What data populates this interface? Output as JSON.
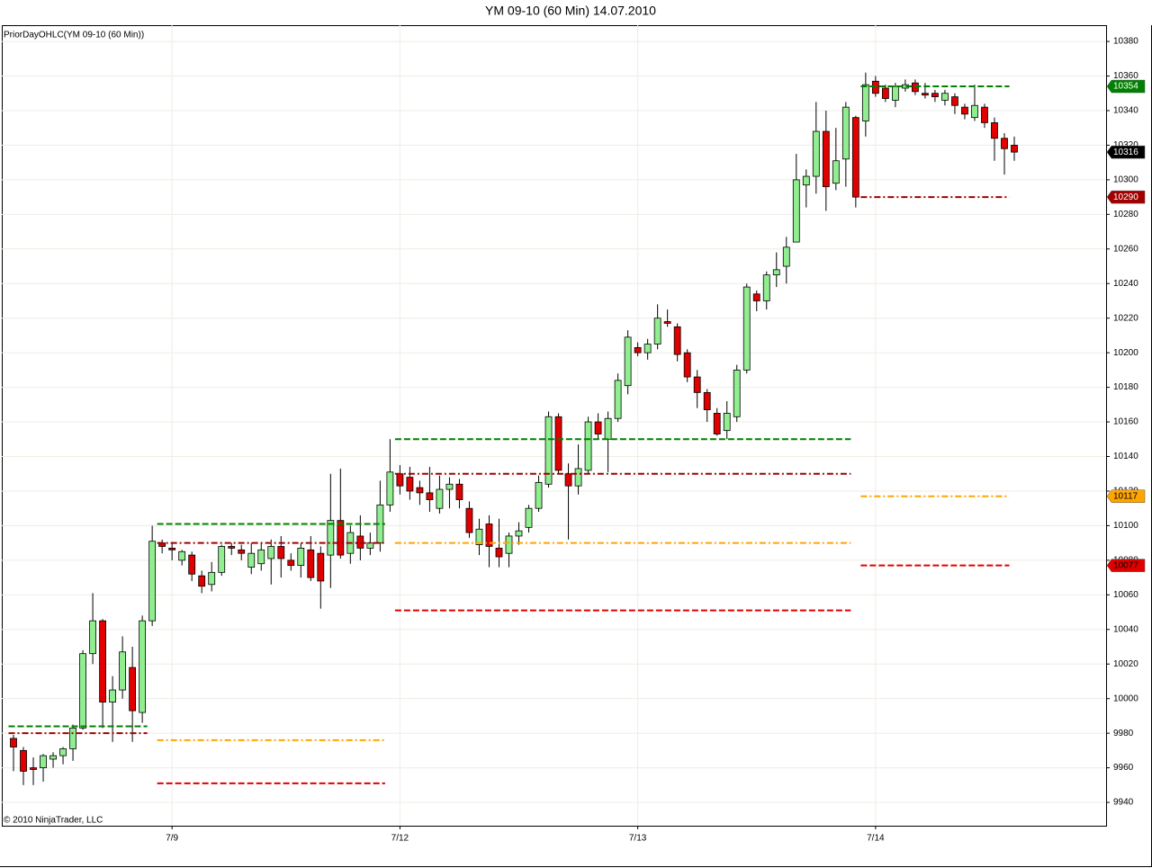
{
  "chart_data": {
    "type": "candlestick",
    "title": "YM 09-10 (60 Min)  14.07.2010",
    "indicator_label": "PriorDayOHLC(YM 09-10 (60 Min))",
    "copyright": "© 2010 NinjaTrader, LLC",
    "categories": [
      null,
      null,
      null,
      null,
      null,
      null,
      null,
      null,
      null,
      null,
      null,
      null,
      null,
      null,
      null,
      null,
      "7/9",
      null,
      null,
      null,
      null,
      null,
      null,
      null,
      null,
      null,
      null,
      null,
      null,
      null,
      null,
      null,
      null,
      null,
      null,
      null,
      null,
      null,
      null,
      "7/12",
      null,
      null,
      null,
      null,
      null,
      null,
      null,
      null,
      null,
      null,
      null,
      null,
      null,
      null,
      null,
      null,
      null,
      null,
      null,
      null,
      null,
      null,
      null,
      "7/13",
      null,
      null,
      null,
      null,
      null,
      null,
      null,
      null,
      null,
      null,
      null,
      null,
      null,
      null,
      null,
      null,
      null,
      null,
      null,
      null,
      null,
      null,
      null,
      "7/14",
      null,
      null,
      null,
      null,
      null,
      null,
      null,
      null,
      null,
      null,
      null,
      null,
      null,
      null
    ],
    "open": [
      9977,
      9970,
      9960,
      9960,
      9965,
      9967,
      9971,
      9983,
      10026,
      10045,
      9998,
      10005,
      10018,
      9992,
      10045,
      10090,
      10087,
      10080,
      10083,
      10071,
      10066,
      10073,
      10088,
      10086,
      10076,
      10078,
      10081,
      10088,
      10080,
      10077,
      10086,
      10084,
      10083,
      10103,
      10084,
      10094,
      10087,
      10090,
      10112,
      10130,
      10128,
      10122,
      10119,
      10110,
      10121,
      10124,
      10110,
      10089,
      10101,
      10087,
      10084,
      10094,
      10099,
      10110,
      10124,
      10163,
      10130,
      10123,
      10132,
      10160,
      10150,
      10162,
      10181,
      10203,
      10200,
      10205,
      10218,
      10215,
      10200,
      10186,
      10177,
      10165,
      10155,
      10163,
      10190,
      10234,
      10230,
      10245,
      10250,
      10264,
      10297,
      10302,
      10328,
      10298,
      10312,
      10336,
      10334,
      10357,
      10353,
      10346,
      10353,
      10356,
      10350,
      10350,
      10346,
      10348,
      10342,
      10336,
      10342,
      10333,
      10324,
      10320
    ],
    "high": [
      9979,
      9972,
      9966,
      9968,
      9969,
      9972,
      9985,
      10028,
      10061,
      10046,
      10013,
      10036,
      10030,
      10048,
      10100,
      10092,
      10090,
      10086,
      10085,
      10074,
      10079,
      10089,
      10090,
      10089,
      10090,
      10090,
      10092,
      10094,
      10084,
      10090,
      10094,
      10088,
      10130,
      10133,
      10100,
      10106,
      10096,
      10126,
      10150,
      10135,
      10134,
      10126,
      10134,
      10129,
      10128,
      10127,
      10114,
      10104,
      10106,
      10104,
      10096,
      10102,
      10112,
      10129,
      10166,
      10165,
      10136,
      10147,
      10163,
      10165,
      10166,
      10188,
      10213,
      10206,
      10208,
      10228,
      10225,
      10217,
      10202,
      10190,
      10179,
      10168,
      10172,
      10193,
      10240,
      10236,
      10247,
      10258,
      10267,
      10315,
      10306,
      10345,
      10340,
      10330,
      10345,
      10337,
      10362,
      10360,
      10355,
      10356,
      10358,
      10358,
      10356,
      10352,
      10352,
      10350,
      10344,
      10355,
      10344,
      10336,
      10327,
      10325
    ],
    "low": [
      9958,
      9950,
      9950,
      9952,
      9960,
      9962,
      9964,
      9982,
      10020,
      9983,
      9975,
      10000,
      9975,
      9986,
      10042,
      10084,
      10080,
      10077,
      10068,
      10061,
      10062,
      10071,
      10083,
      10080,
      10072,
      10074,
      10066,
      10070,
      10074,
      10070,
      10068,
      10052,
      10064,
      10081,
      10078,
      10080,
      10083,
      10085,
      10108,
      10118,
      10115,
      10112,
      10108,
      10107,
      10110,
      10110,
      10093,
      10083,
      10076,
      10076,
      10076,
      10089,
      10096,
      10108,
      10122,
      10130,
      10092,
      10118,
      10130,
      10150,
      10131,
      10160,
      10176,
      10198,
      10196,
      10202,
      10215,
      10195,
      10183,
      10168,
      10160,
      10152,
      10150,
      10160,
      10188,
      10224,
      10225,
      10238,
      10240,
      10264,
      10284,
      10292,
      10282,
      10294,
      10296,
      10284,
      10325,
      10348,
      10345,
      10342,
      10351,
      10349,
      10347,
      10345,
      10343,
      10338,
      10335,
      10334,
      10330,
      10311,
      10303,
      10311
    ],
    "close": [
      9972,
      9958,
      9959,
      9967,
      9967,
      9971,
      9983,
      10026,
      10045,
      9998,
      10005,
      10027,
      9993,
      10045,
      10091,
      10088,
      10086,
      10085,
      10072,
      10065,
      10073,
      10088,
      10087,
      10084,
      10084,
      10086,
      10088,
      10081,
      10077,
      10087,
      10070,
      10068,
      10103,
      10083,
      10096,
      10087,
      10090,
      10112,
      10131,
      10123,
      10120,
      10119,
      10115,
      10121,
      10124,
      10115,
      10096,
      10098,
      10088,
      10082,
      10094,
      10097,
      10110,
      10125,
      10163,
      10132,
      10123,
      10133,
      10160,
      10153,
      10162,
      10184,
      10209,
      10200,
      10205,
      10220,
      10217,
      10199,
      10186,
      10177,
      10167,
      10153,
      10165,
      10190,
      10238,
      10230,
      10245,
      10248,
      10261,
      10300,
      10302,
      10328,
      10296,
      10311,
      10342,
      10290,
      10355,
      10350,
      10347,
      10354,
      10355,
      10351,
      10349,
      10348,
      10350,
      10343,
      10338,
      10343,
      10333,
      10324,
      10318,
      10316
    ],
    "up_color": "#90ee90",
    "down_color": "#e00000",
    "last_marker_color": "#000000",
    "last_marker_text_color": "#ffffff",
    "levels": [
      {
        "color": "#008000",
        "style": "dashed",
        "marker_text_color": "#ffffff",
        "values": [
          9984,
          9984,
          9984,
          9984,
          9984,
          9984,
          9984,
          9984,
          9984,
          9984,
          9984,
          9984,
          9984,
          9984,
          9984,
          10101,
          10101,
          10101,
          10101,
          10101,
          10101,
          10101,
          10101,
          10101,
          10101,
          10101,
          10101,
          10101,
          10101,
          10101,
          10101,
          10101,
          10101,
          10101,
          10101,
          10101,
          10101,
          10101,
          10101,
          10150,
          10150,
          10150,
          10150,
          10150,
          10150,
          10150,
          10150,
          10150,
          10150,
          10150,
          10150,
          10150,
          10150,
          10150,
          10150,
          10150,
          10150,
          10150,
          10150,
          10150,
          10150,
          10150,
          10150,
          10150,
          10150,
          10150,
          10150,
          10150,
          10150,
          10150,
          10150,
          10150,
          10150,
          10150,
          10150,
          10150,
          10150,
          10150,
          10150,
          10150,
          10150,
          10150,
          10150,
          10150,
          10150,
          10150,
          10354,
          10354,
          10354,
          10354,
          10354,
          10354,
          10354,
          10354,
          10354,
          10354,
          10354,
          10354,
          10354,
          10354,
          10354,
          10354
        ]
      },
      {
        "color": "#a00000",
        "style": "dashdot",
        "marker_text_color": "#ffffff",
        "values": [
          9980,
          9980,
          9980,
          9980,
          9980,
          9980,
          9980,
          9980,
          9980,
          9980,
          9980,
          9980,
          9980,
          9980,
          9980,
          10090,
          10090,
          10090,
          10090,
          10090,
          10090,
          10090,
          10090,
          10090,
          10090,
          10090,
          10090,
          10090,
          10090,
          10090,
          10090,
          10090,
          10090,
          10090,
          10090,
          10090,
          10090,
          10090,
          10090,
          10130,
          10130,
          10130,
          10130,
          10130,
          10130,
          10130,
          10130,
          10130,
          10130,
          10130,
          10130,
          10130,
          10130,
          10130,
          10130,
          10130,
          10130,
          10130,
          10130,
          10130,
          10130,
          10130,
          10130,
          10130,
          10130,
          10130,
          10130,
          10130,
          10130,
          10130,
          10130,
          10130,
          10130,
          10130,
          10130,
          10130,
          10130,
          10130,
          10130,
          10130,
          10130,
          10130,
          10130,
          10130,
          10130,
          10130,
          10290,
          10290,
          10290,
          10290,
          10290,
          10290,
          10290,
          10290,
          10290,
          10290,
          10290,
          10290,
          10290,
          10290,
          10290,
          10290
        ]
      },
      {
        "color": "#ffa500",
        "style": "dashdot",
        "marker_text_color": "#000000",
        "values": [
          null,
          null,
          null,
          null,
          null,
          null,
          null,
          null,
          null,
          null,
          null,
          null,
          null,
          null,
          null,
          9976,
          9976,
          9976,
          9976,
          9976,
          9976,
          9976,
          9976,
          9976,
          9976,
          9976,
          9976,
          9976,
          9976,
          9976,
          9976,
          9976,
          9976,
          9976,
          9976,
          9976,
          9976,
          9976,
          9976,
          10090,
          10090,
          10090,
          10090,
          10090,
          10090,
          10090,
          10090,
          10090,
          10090,
          10090,
          10090,
          10090,
          10090,
          10090,
          10090,
          10090,
          10090,
          10090,
          10090,
          10090,
          10090,
          10090,
          10090,
          10090,
          10090,
          10090,
          10090,
          10090,
          10090,
          10090,
          10090,
          10090,
          10090,
          10090,
          10090,
          10090,
          10090,
          10090,
          10090,
          10090,
          10090,
          10090,
          10090,
          10090,
          10090,
          10090,
          10117,
          10117,
          10117,
          10117,
          10117,
          10117,
          10117,
          10117,
          10117,
          10117,
          10117,
          10117,
          10117,
          10117,
          10117,
          10117
        ]
      },
      {
        "color": "#e00000",
        "style": "dashed",
        "marker_text_color": "#000000",
        "values": [
          null,
          null,
          null,
          null,
          null,
          null,
          null,
          null,
          null,
          null,
          null,
          null,
          null,
          null,
          null,
          9951,
          9951,
          9951,
          9951,
          9951,
          9951,
          9951,
          9951,
          9951,
          9951,
          9951,
          9951,
          9951,
          9951,
          9951,
          9951,
          9951,
          9951,
          9951,
          9951,
          9951,
          9951,
          9951,
          9951,
          10051,
          10051,
          10051,
          10051,
          10051,
          10051,
          10051,
          10051,
          10051,
          10051,
          10051,
          10051,
          10051,
          10051,
          10051,
          10051,
          10051,
          10051,
          10051,
          10051,
          10051,
          10051,
          10051,
          10051,
          10051,
          10051,
          10051,
          10051,
          10051,
          10051,
          10051,
          10051,
          10051,
          10051,
          10051,
          10051,
          10051,
          10051,
          10051,
          10051,
          10051,
          10051,
          10051,
          10051,
          10051,
          10051,
          10051,
          10077,
          10077,
          10077,
          10077,
          10077,
          10077,
          10077,
          10077,
          10077,
          10077,
          10077,
          10077,
          10077,
          10077,
          10077,
          10077
        ]
      }
    ],
    "ylim": [
      9926.5,
      10389.4
    ],
    "yticks": [
      9940,
      9960,
      9980,
      10000,
      10020,
      10040,
      10060,
      10080,
      10100,
      10120,
      10140,
      10160,
      10180,
      10200,
      10220,
      10240,
      10260,
      10280,
      10300,
      10320,
      10340,
      10360,
      10380
    ],
    "grid": true
  }
}
